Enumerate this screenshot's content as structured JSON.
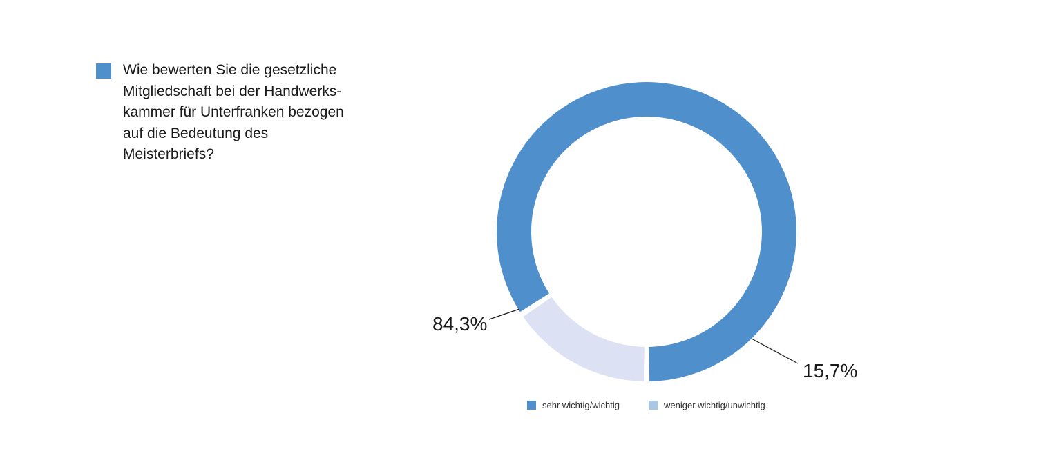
{
  "title_lines": [
    "Wie bewerten Sie die gesetzliche",
    "Mitgliedschaft bei der Handwerks-",
    "kammer für Unterfranken bezogen",
    "auf die Bedeutung des",
    "Meisterbriefs?"
  ],
  "colors": {
    "marker": "#4f8fcb",
    "slice_primary": "#4f8fcb",
    "slice_secondary": "#dce1f4",
    "legend_secondary_swatch": "#a8c8e6",
    "leader": "#1a1a1a"
  },
  "chart_data": {
    "type": "pie",
    "variant": "donut",
    "title": "Wie bewerten Sie die gesetzliche Mitgliedschaft bei der Handwerks-kammer für Unterfranken bezogen auf die Bedeutung des Meisterbriefs?",
    "categories": [
      "sehr wichtig/wichtig",
      "weniger wichtig/unwichtig"
    ],
    "values": [
      84.3,
      15.7
    ],
    "labels": [
      "84,3%",
      "15,7%"
    ],
    "legend_position": "bottom"
  },
  "legend": [
    {
      "label": "sehr wichtig/wichtig"
    },
    {
      "label": "weniger wichtig/unwichtig"
    }
  ]
}
